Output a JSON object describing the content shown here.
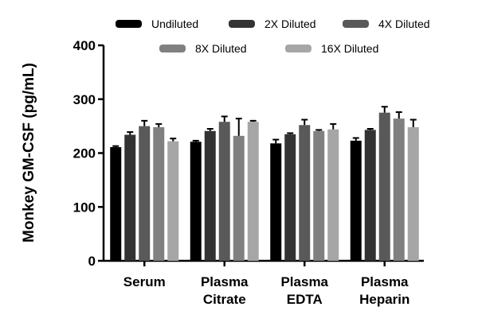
{
  "chart_data": {
    "type": "bar",
    "ylabel": "Monkey GM-CSF (pg/mL)",
    "xlabel": "",
    "ylim": [
      0,
      400
    ],
    "yticks": [
      0,
      100,
      200,
      300,
      400
    ],
    "categories": [
      [
        "Serum"
      ],
      [
        "Plasma",
        "Citrate"
      ],
      [
        "Plasma",
        "EDTA"
      ],
      [
        "Plasma",
        "Heparin"
      ]
    ],
    "series": [
      {
        "name": "Undiluted",
        "color": "#000000",
        "values": [
          211,
          221,
          218,
          223
        ],
        "errors": [
          2,
          2,
          7,
          5
        ]
      },
      {
        "name": "2X Diluted",
        "color": "#333333",
        "values": [
          234,
          241,
          235,
          243
        ],
        "errors": [
          5,
          4,
          2,
          2
        ]
      },
      {
        "name": "4X Diluted",
        "color": "#595959",
        "values": [
          250,
          258,
          252,
          275
        ],
        "errors": [
          10,
          10,
          10,
          11
        ]
      },
      {
        "name": "8X Diluted",
        "color": "#808080",
        "values": [
          248,
          232,
          241,
          264
        ],
        "errors": [
          6,
          32,
          2,
          12
        ]
      },
      {
        "name": "16X Diluted",
        "color": "#a6a6a6",
        "values": [
          222,
          258,
          244,
          248
        ],
        "errors": [
          5,
          2,
          10,
          14
        ]
      }
    ],
    "legend_position": "top"
  }
}
